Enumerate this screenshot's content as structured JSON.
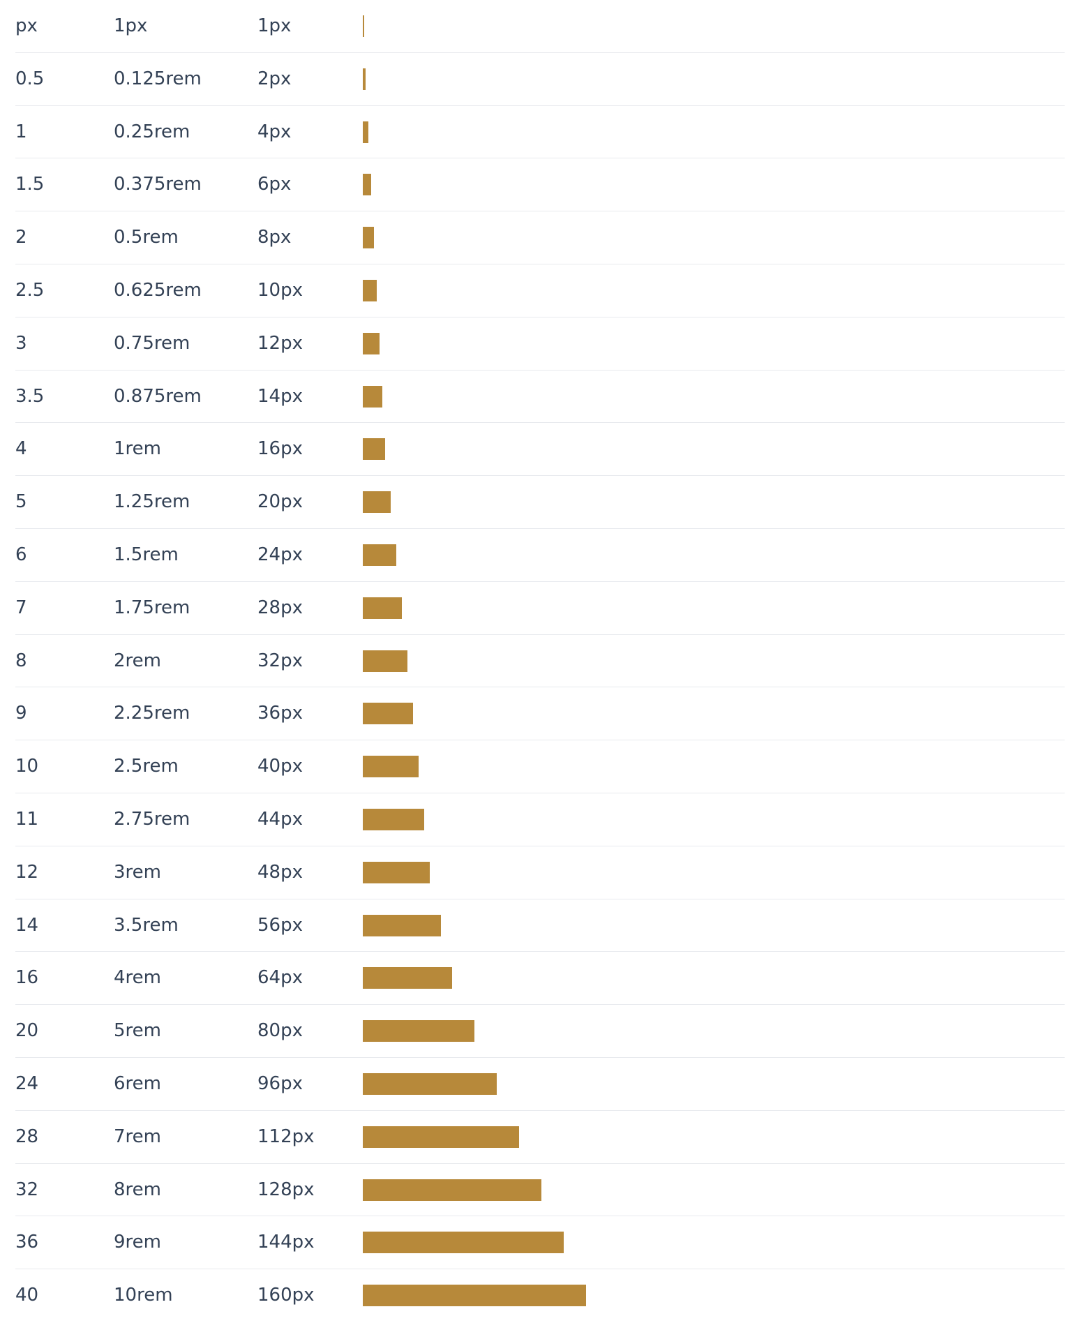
{
  "rows": [
    {
      "name": "px",
      "size": "1px",
      "pixels": {
        "value": 1,
        "label": "1px"
      }
    },
    {
      "name": "0.5",
      "size": "0.125rem",
      "pixels": {
        "value": 2,
        "label": "2px"
      }
    },
    {
      "name": "1",
      "size": "0.25rem",
      "pixels": {
        "value": 4,
        "label": "4px"
      }
    },
    {
      "name": "1.5",
      "size": "0.375rem",
      "pixels": {
        "value": 6,
        "label": "6px"
      }
    },
    {
      "name": "2",
      "size": "0.5rem",
      "pixels": {
        "value": 8,
        "label": "8px"
      }
    },
    {
      "name": "2.5",
      "size": "0.625rem",
      "pixels": {
        "value": 10,
        "label": "10px"
      }
    },
    {
      "name": "3",
      "size": "0.75rem",
      "pixels": {
        "value": 12,
        "label": "12px"
      }
    },
    {
      "name": "3.5",
      "size": "0.875rem",
      "pixels": {
        "value": 14,
        "label": "14px"
      }
    },
    {
      "name": "4",
      "size": "1rem",
      "pixels": {
        "value": 16,
        "label": "16px"
      }
    },
    {
      "name": "5",
      "size": "1.25rem",
      "pixels": {
        "value": 20,
        "label": "20px"
      }
    },
    {
      "name": "6",
      "size": "1.5rem",
      "pixels": {
        "value": 24,
        "label": "24px"
      }
    },
    {
      "name": "7",
      "size": "1.75rem",
      "pixels": {
        "value": 28,
        "label": "28px"
      }
    },
    {
      "name": "8",
      "size": "2rem",
      "pixels": {
        "value": 32,
        "label": "32px"
      }
    },
    {
      "name": "9",
      "size": "2.25rem",
      "pixels": {
        "value": 36,
        "label": "36px"
      }
    },
    {
      "name": "10",
      "size": "2.5rem",
      "pixels": {
        "value": 40,
        "label": "40px"
      }
    },
    {
      "name": "11",
      "size": "2.75rem",
      "pixels": {
        "value": 44,
        "label": "44px"
      }
    },
    {
      "name": "12",
      "size": "3rem",
      "pixels": {
        "value": 48,
        "label": "48px"
      }
    },
    {
      "name": "14",
      "size": "3.5rem",
      "pixels": {
        "value": 56,
        "label": "56px"
      }
    },
    {
      "name": "16",
      "size": "4rem",
      "pixels": {
        "value": 64,
        "label": "64px"
      }
    },
    {
      "name": "20",
      "size": "5rem",
      "pixels": {
        "value": 80,
        "label": "80px"
      }
    },
    {
      "name": "24",
      "size": "6rem",
      "pixels": {
        "value": 96,
        "label": "96px"
      }
    },
    {
      "name": "28",
      "size": "7rem",
      "pixels": {
        "value": 112,
        "label": "112px"
      }
    },
    {
      "name": "32",
      "size": "8rem",
      "pixels": {
        "value": 128,
        "label": "128px"
      }
    },
    {
      "name": "36",
      "size": "9rem",
      "pixels": {
        "value": 144,
        "label": "144px"
      }
    },
    {
      "name": "40",
      "size": "10rem",
      "pixels": {
        "value": 160,
        "label": "160px"
      }
    }
  ]
}
